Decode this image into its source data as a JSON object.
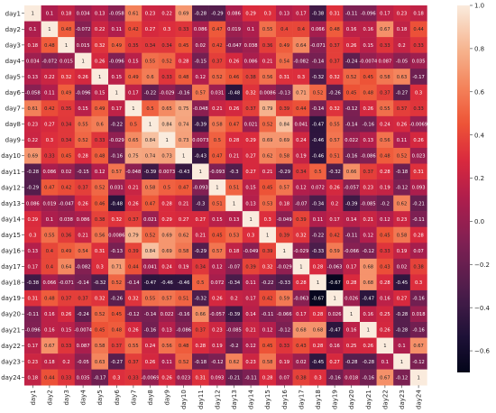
{
  "chart_data": {
    "type": "heatmap",
    "title": "",
    "xlabel": "",
    "ylabel": "",
    "labels": [
      "day1",
      "day2",
      "day3",
      "day4",
      "day5",
      "day6",
      "day7",
      "day8",
      "day9",
      "day10",
      "day11",
      "day12",
      "day13",
      "day14",
      "day15",
      "day16",
      "day17",
      "day18",
      "day19",
      "day20",
      "day21",
      "day22",
      "day23",
      "day24"
    ],
    "values": [
      [
        1,
        0.1,
        0.18,
        0.034,
        0.13,
        -0.058,
        0.61,
        0.23,
        0.22,
        0.69,
        -0.28,
        -0.29,
        0.086,
        0.29,
        0.3,
        0.13,
        0.17,
        -0.38,
        0.31,
        -0.11,
        -0.096,
        0.17,
        0.23,
        0.18
      ],
      [
        0.1,
        1,
        0.48,
        -0.072,
        0.22,
        0.11,
        0.42,
        0.27,
        0.3,
        0.33,
        0.086,
        0.47,
        0.019,
        0.1,
        0.55,
        0.4,
        0.4,
        0.066,
        0.48,
        0.16,
        0.16,
        0.67,
        0.18,
        0.44
      ],
      [
        0.18,
        0.48,
        1,
        0.015,
        0.32,
        0.49,
        0.35,
        0.34,
        0.34,
        0.45,
        0.02,
        0.42,
        -0.047,
        0.038,
        0.36,
        0.49,
        0.64,
        -0.071,
        0.37,
        0.26,
        0.15,
        0.33,
        0.2,
        0.33
      ],
      [
        0.034,
        -0.072,
        0.015,
        1,
        0.26,
        -0.096,
        0.15,
        0.55,
        0.52,
        0.28,
        -0.15,
        0.37,
        0.26,
        0.086,
        0.21,
        0.54,
        -0.082,
        -0.14,
        0.37,
        -0.24,
        -0.0074,
        0.087,
        -0.05,
        0.035
      ],
      [
        0.13,
        0.22,
        0.32,
        0.26,
        1,
        0.15,
        0.49,
        0.6,
        0.33,
        0.48,
        0.12,
        0.52,
        0.46,
        0.38,
        0.56,
        0.31,
        0.3,
        -0.32,
        0.32,
        0.52,
        0.45,
        0.58,
        0.63,
        -0.17
      ],
      [
        -0.058,
        0.11,
        0.49,
        -0.096,
        0.15,
        1,
        0.17,
        -0.22,
        -0.029,
        -0.16,
        0.57,
        0.031,
        -0.48,
        0.32,
        0.0086,
        -0.13,
        0.71,
        0.52,
        -0.26,
        0.45,
        0.48,
        0.37,
        -0.27,
        0.3
      ],
      [
        0.61,
        0.42,
        0.35,
        0.15,
        0.49,
        0.17,
        1,
        0.5,
        0.65,
        0.75,
        -0.048,
        0.21,
        0.26,
        0.37,
        0.79,
        0.39,
        0.44,
        -0.14,
        0.32,
        -0.12,
        0.26,
        0.55,
        0.37,
        0.33
      ],
      [
        0.23,
        0.27,
        0.34,
        0.55,
        0.6,
        -0.22,
        0.5,
        1,
        0.84,
        0.74,
        -0.39,
        0.58,
        0.47,
        0.021,
        0.52,
        0.84,
        0.041,
        -0.47,
        0.55,
        -0.14,
        -0.16,
        0.24,
        0.26,
        -0.0069
      ],
      [
        0.22,
        0.3,
        0.34,
        0.52,
        0.33,
        -0.029,
        0.65,
        0.84,
        1,
        0.73,
        0.0073,
        0.5,
        0.28,
        0.29,
        0.69,
        0.69,
        0.24,
        -0.46,
        0.57,
        0.022,
        0.13,
        0.56,
        0.11,
        0.26
      ],
      [
        0.69,
        0.33,
        0.45,
        0.28,
        0.48,
        -0.16,
        0.75,
        0.74,
        0.73,
        1,
        -0.43,
        0.47,
        0.21,
        0.27,
        0.62,
        0.58,
        0.19,
        -0.46,
        0.51,
        -0.16,
        -0.086,
        0.48,
        0.52,
        0.023
      ],
      [
        -0.28,
        0.086,
        0.02,
        -0.15,
        0.12,
        0.57,
        -0.048,
        -0.39,
        0.0073,
        -0.43,
        1,
        -0.093,
        -0.3,
        0.27,
        0.21,
        -0.29,
        0.34,
        0.5,
        -0.32,
        0.66,
        0.37,
        0.28,
        -0.18,
        0.31
      ],
      [
        -0.29,
        0.47,
        0.42,
        0.37,
        0.52,
        0.031,
        0.21,
        0.58,
        0.5,
        0.47,
        -0.093,
        1,
        0.51,
        0.15,
        0.45,
        0.57,
        0.12,
        0.072,
        0.26,
        -0.057,
        0.23,
        0.19,
        -0.12,
        0.093
      ],
      [
        0.086,
        0.019,
        -0.047,
        0.26,
        0.46,
        -0.48,
        0.26,
        0.47,
        0.28,
        0.21,
        -0.3,
        0.51,
        1,
        0.13,
        0.53,
        0.18,
        -0.07,
        -0.34,
        0.2,
        -0.39,
        -0.085,
        -0.2,
        0.62,
        -0.21
      ],
      [
        0.29,
        0.1,
        0.038,
        0.086,
        0.38,
        0.32,
        0.37,
        0.021,
        0.29,
        0.27,
        0.27,
        0.15,
        0.13,
        1,
        0.3,
        -0.049,
        0.39,
        0.11,
        0.17,
        0.14,
        0.21,
        0.12,
        0.23,
        -0.11
      ],
      [
        0.3,
        0.55,
        0.36,
        0.21,
        0.56,
        0.0086,
        0.79,
        0.52,
        0.69,
        0.62,
        0.21,
        0.45,
        0.53,
        0.3,
        1,
        0.39,
        0.32,
        -0.22,
        0.42,
        -0.11,
        0.12,
        0.45,
        0.58,
        0.28
      ],
      [
        0.13,
        0.4,
        0.49,
        0.54,
        0.31,
        -0.13,
        0.39,
        0.84,
        0.69,
        0.58,
        -0.29,
        0.57,
        0.18,
        -0.049,
        0.39,
        1,
        -0.029,
        -0.33,
        0.59,
        -0.066,
        -0.12,
        0.33,
        0.19,
        0.07
      ],
      [
        0.17,
        0.4,
        0.64,
        -0.082,
        0.3,
        0.71,
        0.44,
        0.041,
        0.24,
        0.19,
        0.34,
        0.12,
        -0.07,
        0.39,
        0.32,
        -0.029,
        1,
        0.28,
        -0.063,
        0.17,
        0.68,
        0.43,
        0.02,
        0.38
      ],
      [
        -0.38,
        0.066,
        -0.071,
        -0.14,
        -0.32,
        0.52,
        -0.14,
        -0.47,
        -0.46,
        -0.46,
        0.5,
        0.072,
        -0.34,
        0.11,
        -0.22,
        -0.33,
        0.28,
        1,
        -0.67,
        0.28,
        0.68,
        0.28,
        -0.45,
        0.3
      ],
      [
        0.31,
        0.48,
        0.37,
        0.37,
        0.32,
        -0.26,
        0.32,
        0.55,
        0.57,
        0.51,
        -0.32,
        0.26,
        0.2,
        0.17,
        0.42,
        0.59,
        -0.063,
        -0.67,
        1,
        0.026,
        -0.47,
        0.16,
        0.27,
        -0.16
      ],
      [
        -0.11,
        0.16,
        0.26,
        -0.24,
        0.52,
        0.45,
        -0.12,
        -0.14,
        0.022,
        -0.16,
        0.66,
        -0.057,
        -0.39,
        0.14,
        -0.11,
        -0.066,
        0.17,
        0.28,
        0.026,
        1,
        0.16,
        0.25,
        -0.28,
        0.018
      ],
      [
        -0.096,
        0.16,
        0.15,
        -0.0074,
        0.45,
        0.48,
        0.26,
        -0.16,
        0.13,
        -0.086,
        0.37,
        0.23,
        -0.085,
        0.21,
        0.12,
        -0.12,
        0.68,
        0.68,
        -0.47,
        0.16,
        1,
        0.26,
        -0.28,
        -0.16
      ],
      [
        0.17,
        0.67,
        0.33,
        0.087,
        0.58,
        0.37,
        0.55,
        0.24,
        0.56,
        0.48,
        0.28,
        0.19,
        -0.2,
        0.12,
        0.45,
        0.33,
        0.43,
        0.28,
        0.16,
        0.25,
        0.26,
        1,
        0.1,
        0.67
      ],
      [
        0.23,
        0.18,
        0.2,
        -0.05,
        0.63,
        -0.27,
        0.37,
        0.26,
        0.11,
        0.52,
        -0.18,
        -0.12,
        0.62,
        0.23,
        0.58,
        0.19,
        0.02,
        -0.45,
        0.27,
        -0.28,
        -0.28,
        0.1,
        1,
        -0.12
      ],
      [
        0.18,
        0.44,
        0.33,
        0.035,
        -0.17,
        0.3,
        0.33,
        -0.0069,
        0.26,
        0.023,
        0.31,
        0.093,
        -0.21,
        -0.11,
        0.28,
        0.07,
        0.38,
        0.3,
        -0.16,
        0.018,
        -0.16,
        0.67,
        -0.12,
        1
      ]
    ],
    "color_scale": "rocket (dark purple to cream)",
    "vmin": -0.7,
    "vmax": 1.0,
    "colorbar_ticks": [
      1.0,
      0.8,
      0.6,
      0.4,
      0.2,
      0.0,
      -0.2,
      -0.4,
      -0.6
    ],
    "annotations": true,
    "grid": false,
    "legend": "colorbar-right"
  }
}
